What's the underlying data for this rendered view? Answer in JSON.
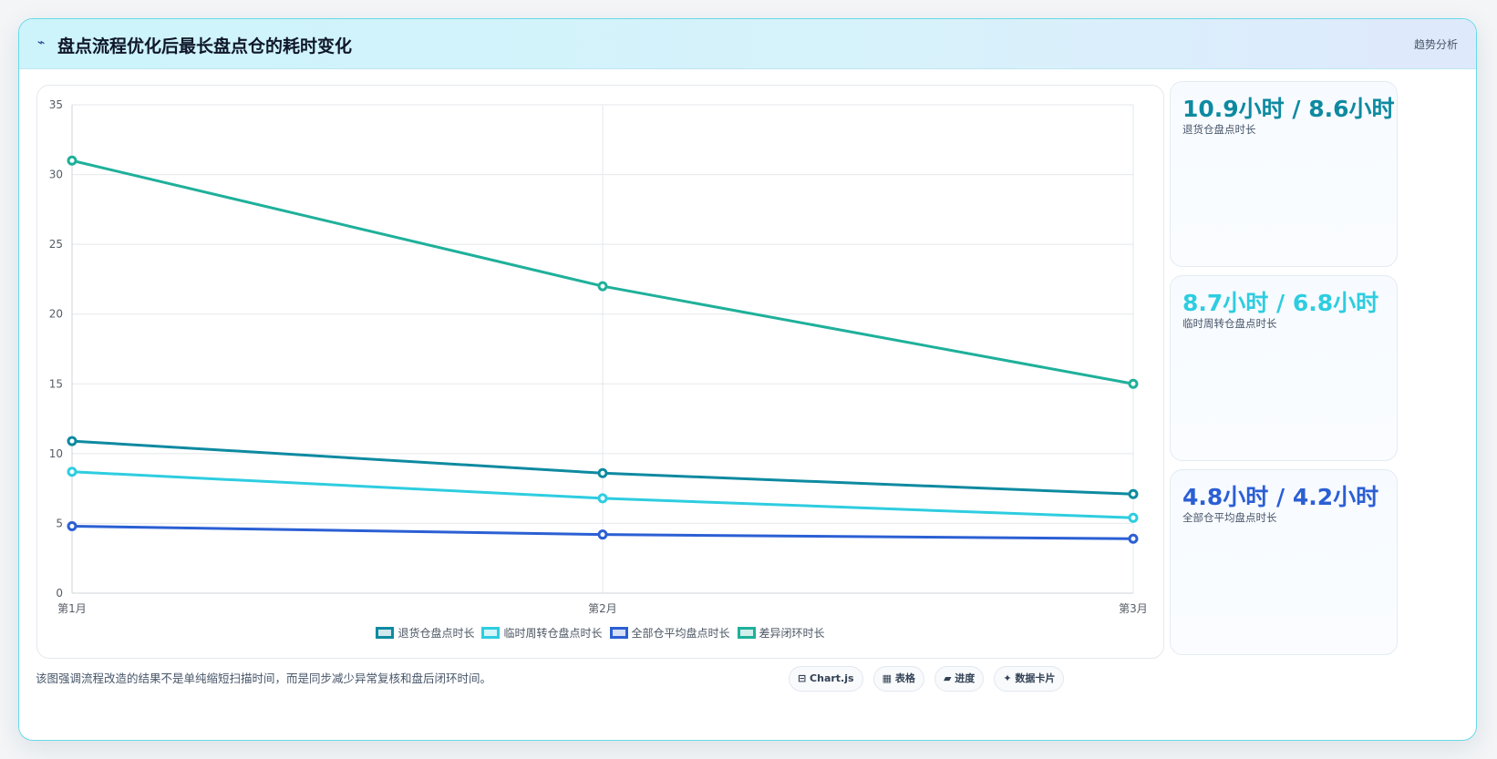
{
  "header": {
    "icon": "trend-icon",
    "title": "盘点流程优化后最长盘点仓的耗时变化",
    "tag": "趋势分析"
  },
  "chart_data": {
    "type": "line",
    "title": "",
    "xlabel": "",
    "ylabel": "",
    "categories": [
      "第1月",
      "第2月",
      "第3月"
    ],
    "ylim": [
      0,
      35
    ],
    "yticks": [
      0,
      5,
      10,
      15,
      20,
      25,
      30,
      35
    ],
    "grid": true,
    "legend_position": "bottom",
    "series": [
      {
        "name": "退货仓盘点时长",
        "values": [
          10.9,
          8.6,
          7.1
        ],
        "color": "#0e8aa0"
      },
      {
        "name": "临时周转仓盘点时长",
        "values": [
          8.7,
          6.8,
          5.4
        ],
        "color": "#2ecde0"
      },
      {
        "name": "全部仓平均盘点时长",
        "values": [
          4.8,
          4.2,
          3.9
        ],
        "color": "#2b5fd4"
      },
      {
        "name": "差异闭环时长",
        "values": [
          31,
          22,
          15
        ],
        "color": "#1fb09a"
      }
    ]
  },
  "stats": [
    {
      "value": "10.9小时 / 8.6小时",
      "label": "退货仓盘点时长",
      "color": "#0e8aa0"
    },
    {
      "value": "8.7小时 / 6.8小时",
      "label": "临时周转仓盘点时长",
      "color": "#2ecde0"
    },
    {
      "value": "4.8小时 / 4.2小时",
      "label": "全部仓平均盘点时长",
      "color": "#2b5fd4"
    }
  ],
  "footer": {
    "note": "该图强调流程改造的结果不是单纯缩短扫描时间，而是同步减少异常复核和盘后闭环时间。",
    "chips": [
      "⊟ Chart.js",
      "▦ 表格",
      "▰ 进度",
      "✦ 数据卡片"
    ]
  }
}
